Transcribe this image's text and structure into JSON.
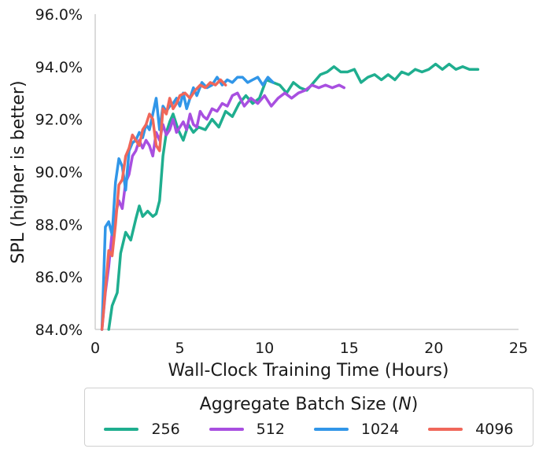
{
  "chart_data": {
    "type": "line",
    "xlabel": "Wall-Clock Training Time (Hours)",
    "ylabel": "SPL (higher is better)",
    "xlim": [
      0,
      25
    ],
    "ylim": [
      84,
      96
    ],
    "xticks": [
      "0",
      "5",
      "10",
      "15",
      "20",
      "25"
    ],
    "yticks": [
      "84.0%",
      "86.0%",
      "88.0%",
      "90.0%",
      "92.0%",
      "94.0%",
      "96.0%"
    ],
    "grid": false,
    "legend": {
      "title_prefix": "Aggregate Batch Size (",
      "title_var": "N",
      "title_suffix": ")",
      "placement": "bottom"
    },
    "series": [
      {
        "name": "256",
        "color": "#1fae8f",
        "x": [
          0.8,
          1.0,
          1.3,
          1.5,
          1.8,
          2.1,
          2.4,
          2.6,
          2.8,
          3.1,
          3.4,
          3.6,
          3.8,
          4.0,
          4.2,
          4.4,
          4.6,
          4.9,
          5.2,
          5.5,
          5.8,
          6.1,
          6.5,
          6.9,
          7.3,
          7.7,
          8.1,
          8.5,
          8.9,
          9.3,
          9.7,
          10.1,
          10.5,
          10.9,
          11.3,
          11.7,
          12.1,
          12.5,
          12.9,
          13.3,
          13.7,
          14.1,
          14.5,
          14.9,
          15.3,
          15.7,
          16.1,
          16.5,
          16.9,
          17.3,
          17.7,
          18.1,
          18.5,
          18.9,
          19.3,
          19.7,
          20.1,
          20.5,
          20.9,
          21.3,
          21.7,
          22.1,
          22.6
        ],
        "y": [
          84.0,
          84.9,
          85.4,
          86.9,
          87.7,
          87.4,
          88.2,
          88.7,
          88.3,
          88.5,
          88.3,
          88.4,
          88.9,
          90.6,
          91.5,
          91.9,
          92.2,
          91.6,
          91.2,
          91.8,
          91.5,
          91.7,
          91.6,
          92.0,
          91.7,
          92.3,
          92.1,
          92.6,
          92.9,
          92.6,
          92.8,
          93.5,
          93.4,
          93.3,
          93.0,
          93.4,
          93.2,
          93.1,
          93.4,
          93.7,
          93.8,
          94.0,
          93.8,
          93.8,
          93.9,
          93.4,
          93.6,
          93.7,
          93.5,
          93.7,
          93.5,
          93.8,
          93.7,
          93.9,
          93.8,
          93.9,
          94.1,
          93.9,
          94.1,
          93.9,
          94.0,
          93.9,
          93.9
        ]
      },
      {
        "name": "512",
        "color": "#a84fe0",
        "x": [
          0.4,
          0.6,
          0.8,
          1.0,
          1.2,
          1.4,
          1.6,
          1.8,
          2.0,
          2.2,
          2.4,
          2.6,
          2.8,
          3.0,
          3.2,
          3.4,
          3.6,
          3.8,
          4.0,
          4.2,
          4.4,
          4.6,
          4.8,
          5.0,
          5.2,
          5.4,
          5.6,
          5.8,
          6.0,
          6.2,
          6.4,
          6.6,
          6.9,
          7.2,
          7.5,
          7.8,
          8.1,
          8.4,
          8.8,
          9.2,
          9.6,
          10.0,
          10.4,
          10.8,
          11.2,
          11.6,
          12.0,
          12.4,
          12.8,
          13.2,
          13.6,
          14.0,
          14.4,
          14.7
        ],
        "y": [
          84.0,
          85.4,
          86.4,
          87.7,
          88.4,
          88.9,
          88.6,
          89.6,
          89.9,
          90.6,
          90.8,
          91.2,
          90.9,
          91.2,
          91.0,
          90.6,
          91.5,
          91.2,
          91.8,
          91.4,
          91.6,
          92.0,
          91.5,
          91.7,
          91.9,
          91.6,
          92.2,
          91.8,
          91.7,
          92.3,
          92.1,
          92.0,
          92.4,
          92.3,
          92.6,
          92.5,
          92.9,
          93.0,
          92.5,
          92.8,
          92.6,
          92.9,
          92.5,
          92.8,
          93.0,
          92.8,
          93.0,
          93.1,
          93.3,
          93.2,
          93.3,
          93.2,
          93.3,
          93.2
        ]
      },
      {
        "name": "1024",
        "color": "#3196e8",
        "x": [
          0.4,
          0.6,
          0.8,
          1.0,
          1.2,
          1.4,
          1.6,
          1.8,
          2.0,
          2.2,
          2.4,
          2.6,
          2.8,
          3.0,
          3.2,
          3.4,
          3.6,
          3.8,
          4.0,
          4.2,
          4.4,
          4.6,
          4.8,
          5.0,
          5.2,
          5.4,
          5.6,
          5.8,
          6.0,
          6.3,
          6.6,
          6.9,
          7.2,
          7.5,
          7.8,
          8.1,
          8.4,
          8.7,
          9.0,
          9.3,
          9.6,
          9.9,
          10.2,
          10.5
        ],
        "y": [
          84.0,
          87.9,
          88.1,
          87.6,
          89.6,
          90.5,
          90.2,
          89.3,
          90.8,
          91.1,
          91.2,
          91.5,
          91.3,
          91.8,
          91.6,
          92.2,
          92.8,
          91.6,
          92.5,
          92.3,
          92.5,
          92.6,
          92.8,
          92.5,
          93.0,
          92.4,
          92.8,
          93.2,
          92.9,
          93.4,
          93.2,
          93.3,
          93.6,
          93.3,
          93.5,
          93.4,
          93.6,
          93.6,
          93.4,
          93.5,
          93.6,
          93.3,
          93.6,
          93.4
        ]
      },
      {
        "name": "4096",
        "color": "#f0675a",
        "x": [
          0.4,
          0.6,
          0.8,
          1.0,
          1.2,
          1.4,
          1.6,
          1.8,
          2.0,
          2.2,
          2.4,
          2.6,
          2.8,
          3.0,
          3.2,
          3.4,
          3.6,
          3.8,
          4.0,
          4.2,
          4.4,
          4.6,
          4.8,
          5.0,
          5.3,
          5.6,
          5.9,
          6.2,
          6.5,
          6.8,
          7.1,
          7.4,
          7.7
        ],
        "y": [
          84.0,
          85.5,
          87.0,
          86.8,
          88.0,
          89.5,
          89.7,
          90.6,
          90.9,
          91.4,
          91.2,
          91.0,
          91.6,
          91.8,
          92.2,
          92.0,
          91.0,
          90.8,
          92.4,
          92.2,
          92.8,
          92.4,
          92.6,
          92.9,
          93.0,
          92.8,
          93.1,
          93.3,
          93.2,
          93.4,
          93.3,
          93.5,
          93.3
        ]
      }
    ]
  }
}
